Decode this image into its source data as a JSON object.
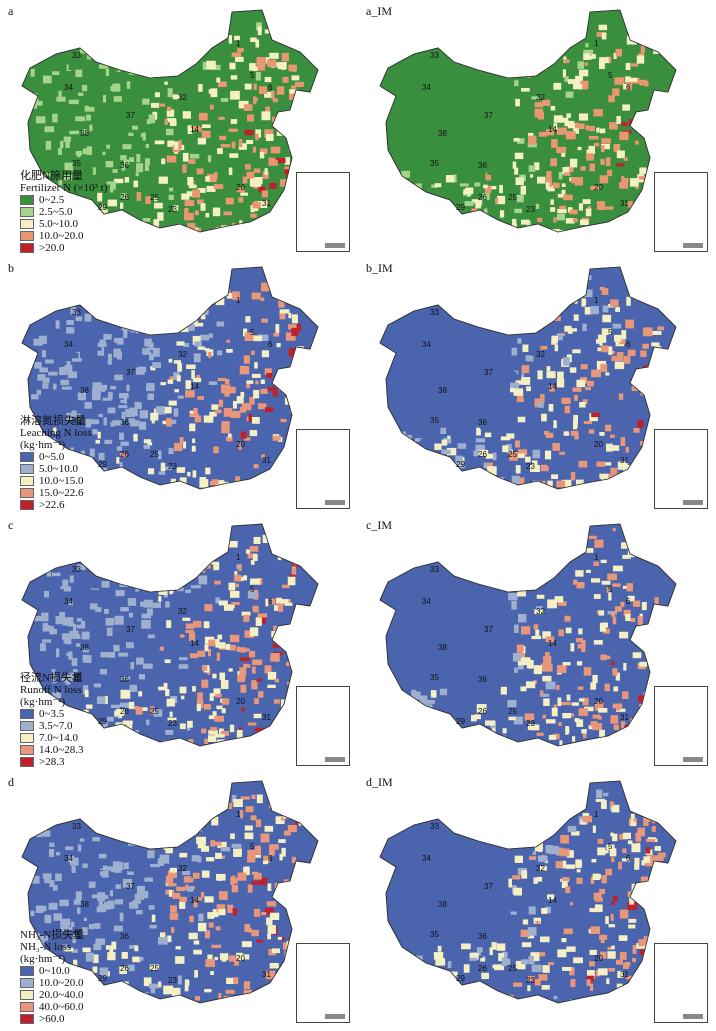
{
  "panels": [
    {
      "id": "a",
      "label": "a",
      "palette": [
        "#3a8f3e",
        "#a6d48a",
        "#f4f0c4",
        "#e89770",
        "#c0202a"
      ],
      "legend": {
        "title_cn": "化肥N施用量",
        "title_en": "Fertilizer N (×10³ t)",
        "unit": "",
        "classes": [
          "0~2.5",
          "2.5~5.0",
          "5.0~10.0",
          "10.0~20.0",
          ">20.0"
        ]
      }
    },
    {
      "id": "a_IM",
      "label": "a_IM",
      "palette": [
        "#3a8f3e",
        "#a6d48a",
        "#f4f0c4",
        "#e89770",
        "#c0202a"
      ],
      "legend": null
    },
    {
      "id": "b",
      "label": "b",
      "palette": [
        "#4a64ad",
        "#9fb0cf",
        "#f4f0c4",
        "#e8977a",
        "#c0202a"
      ],
      "legend": {
        "title_cn": "淋溶氮损失量",
        "title_en": "Leaching N loss",
        "unit": "(kg·hm⁻²)",
        "classes": [
          "0~5.0",
          "5.0~10.0",
          "10.0~15.0",
          "15.0~22.6",
          ">22.6"
        ]
      }
    },
    {
      "id": "b_IM",
      "label": "b_IM",
      "palette": [
        "#4a64ad",
        "#9fb0cf",
        "#f4f0c4",
        "#e8977a",
        "#c0202a"
      ],
      "legend": null
    },
    {
      "id": "c",
      "label": "c",
      "palette": [
        "#4a64ad",
        "#9fb0cf",
        "#f4f0c4",
        "#e8977a",
        "#c0202a"
      ],
      "legend": {
        "title_cn": "径流N损失量",
        "title_en": "Runoff N loss",
        "unit": "(kg·hm⁻²)",
        "classes": [
          "0~3.5",
          "3.5~7.0",
          "7.0~14.0",
          "14.0~28.3",
          ">28.3"
        ]
      }
    },
    {
      "id": "c_IM",
      "label": "c_IM",
      "palette": [
        "#4a64ad",
        "#9fb0cf",
        "#f4f0c4",
        "#e8977a",
        "#c0202a"
      ],
      "legend": null
    },
    {
      "id": "d",
      "label": "d",
      "palette": [
        "#4a64ad",
        "#9fb0cf",
        "#f4f0c4",
        "#e8977a",
        "#c0202a"
      ],
      "legend": {
        "title_cn": "NH₃-N损失量",
        "title_en": "NH₃-N loss",
        "unit": "(kg·hm⁻²)",
        "classes": [
          "0~10.0",
          "10.0~20.0",
          "20.0~40.0",
          "40.0~60.0",
          ">60.0"
        ]
      }
    },
    {
      "id": "d_IM",
      "label": "d_IM",
      "palette": [
        "#4a64ad",
        "#9fb0cf",
        "#f4f0c4",
        "#e8977a",
        "#c0202a"
      ],
      "legend": null
    }
  ],
  "region_labels": [
    "1",
    "5",
    "6",
    "32",
    "33",
    "34",
    "35",
    "36",
    "37",
    "38",
    "14",
    "20",
    "23",
    "25",
    "26",
    "29",
    "31"
  ]
}
